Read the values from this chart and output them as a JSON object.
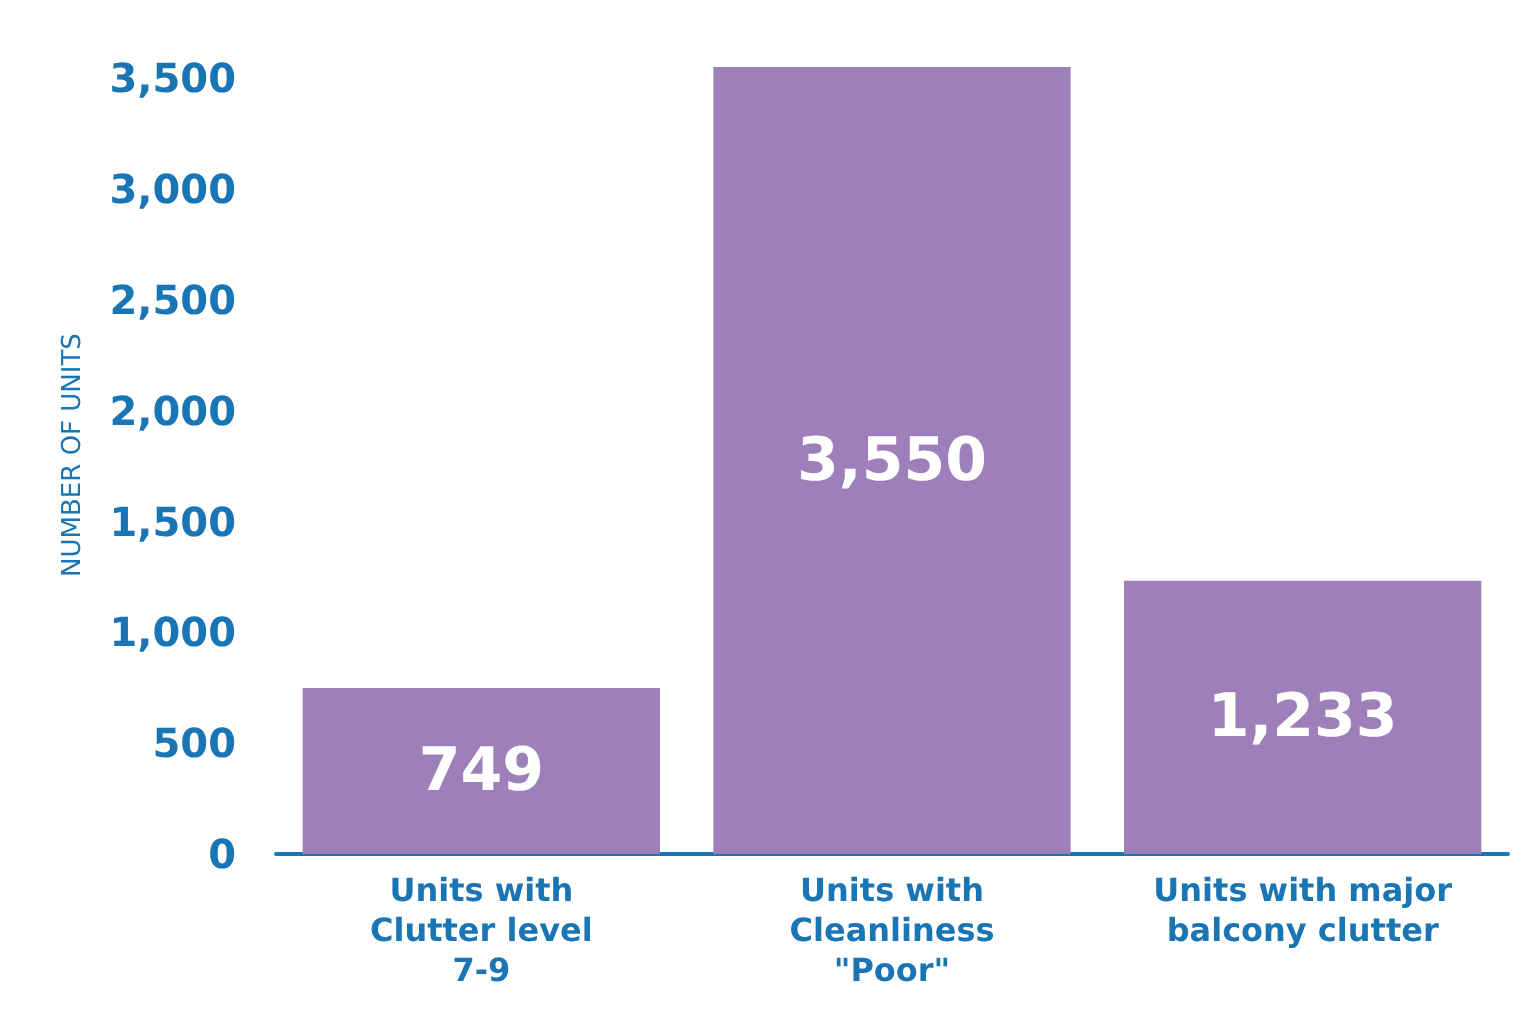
{
  "chart_data": {
    "type": "bar",
    "ylabel": "NUMBER OF UNITS",
    "categories": [
      "Units with\nClutter level\n7-9",
      "Units with\nCleanliness\n\"Poor\"",
      "Units with major\nbalcony clutter"
    ],
    "values": [
      749,
      3550,
      1233
    ],
    "value_labels": [
      "749",
      "3,550",
      "1,233"
    ],
    "color": "#9d7fba",
    "ylim": [
      0,
      3600
    ],
    "yticks": [
      {
        "value": 0,
        "label": "0"
      },
      {
        "value": 500,
        "label": "500"
      },
      {
        "value": 1000,
        "label": "1,000"
      },
      {
        "value": 1500,
        "label": "1,500"
      },
      {
        "value": 2000,
        "label": "2,000"
      },
      {
        "value": 2500,
        "label": "2,500"
      },
      {
        "value": 3000,
        "label": "3,000"
      },
      {
        "value": 3500,
        "label": "3,500"
      }
    ],
    "grid": false
  }
}
